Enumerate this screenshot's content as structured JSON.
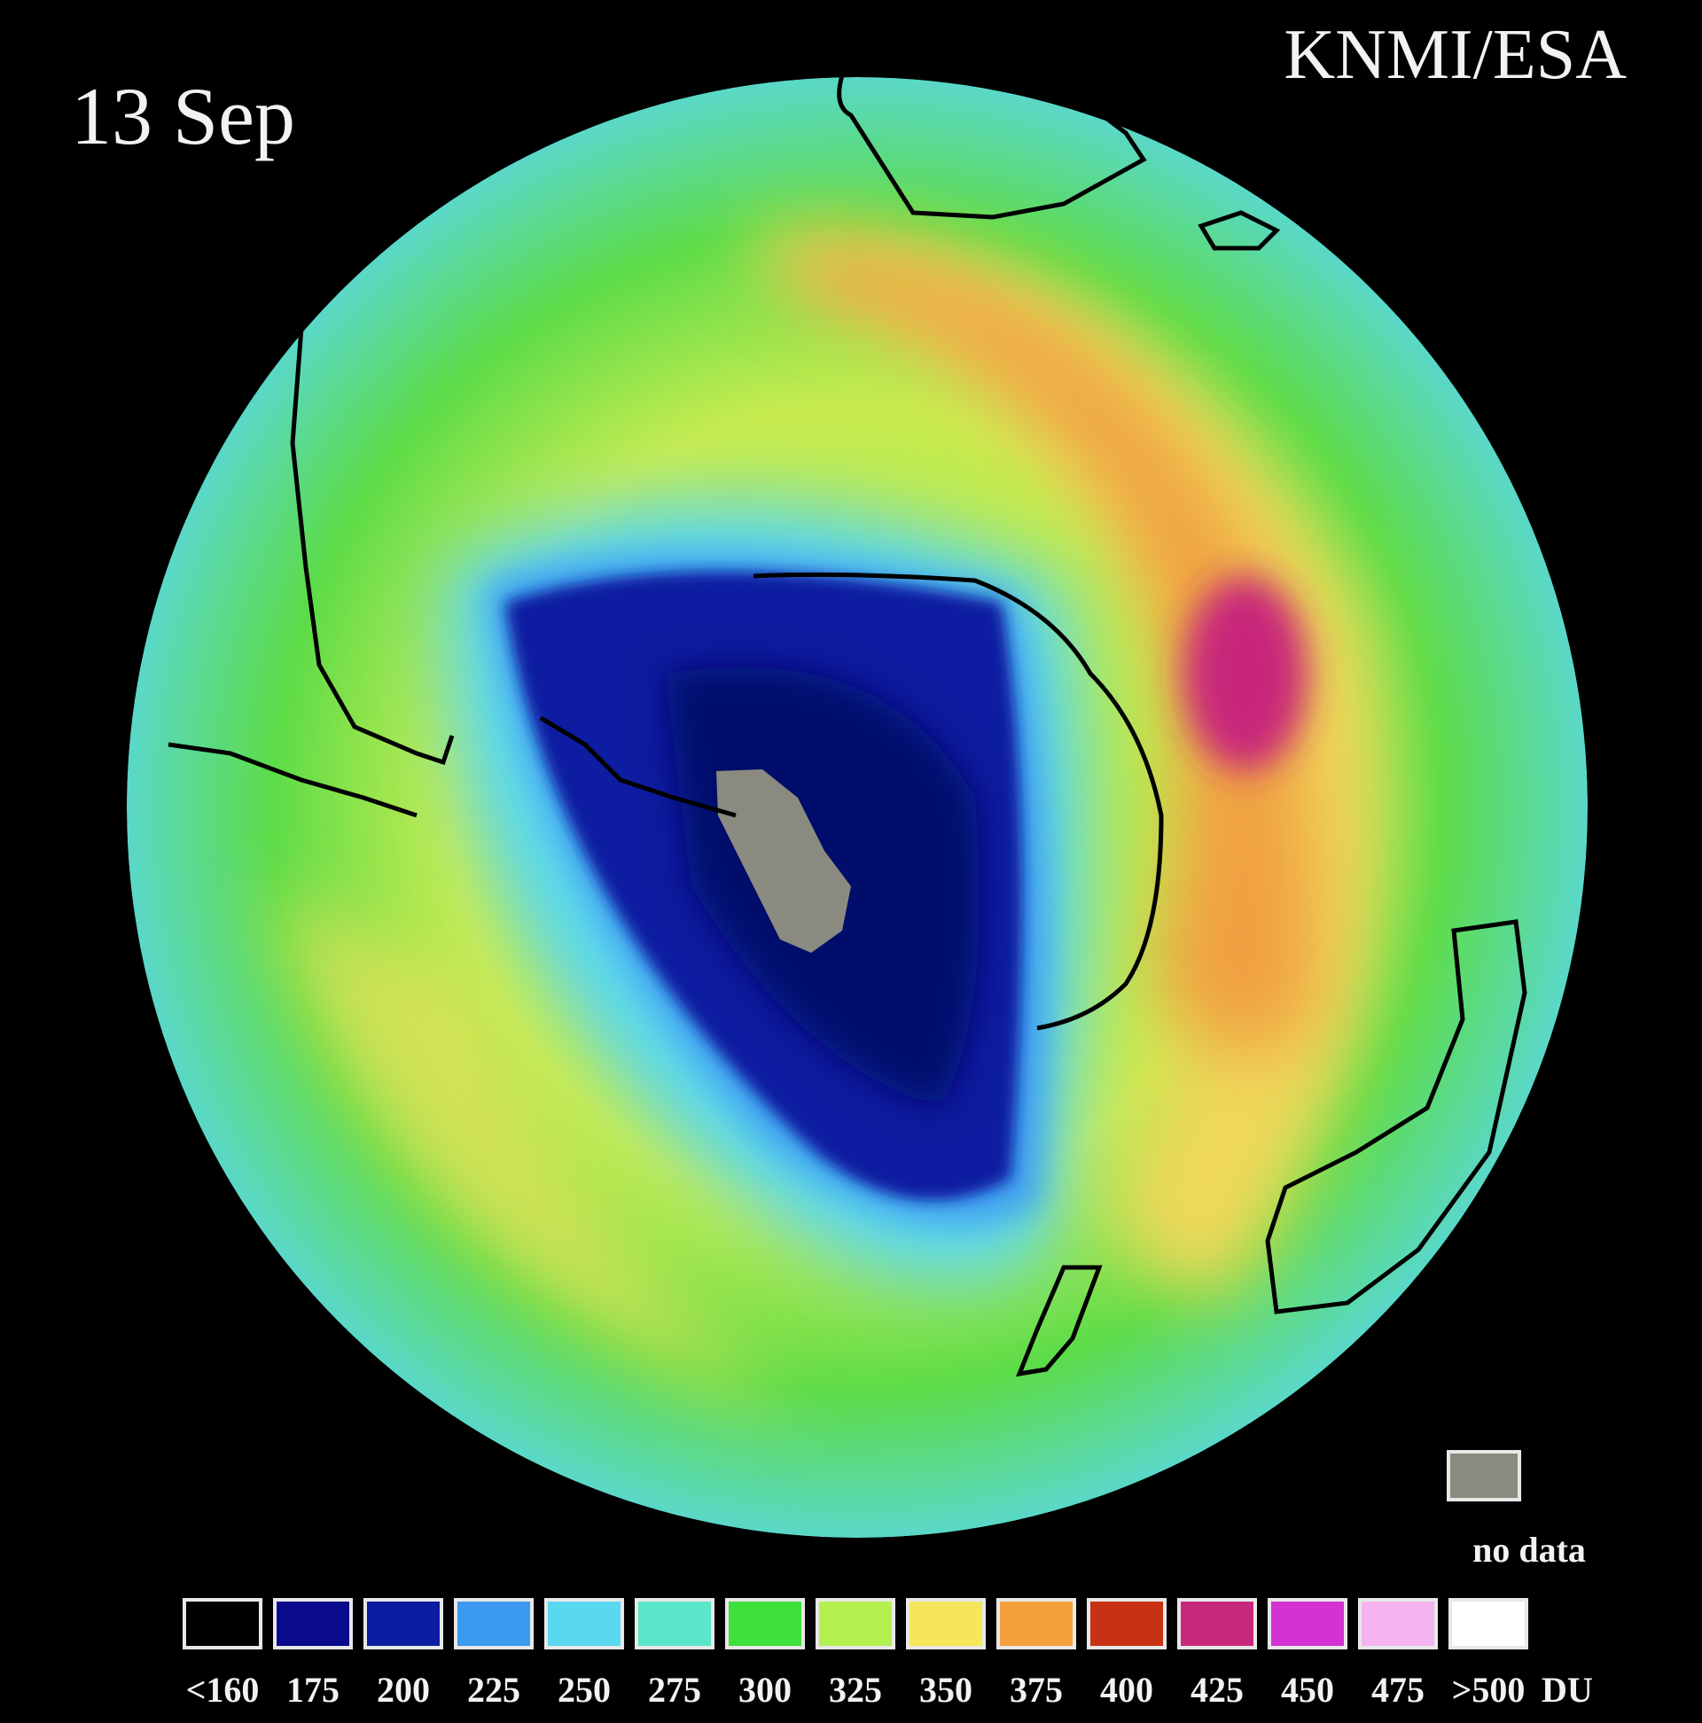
{
  "header": {
    "source": "KNMI/ESA",
    "date": "13 Sep"
  },
  "no_data": {
    "label": "no data",
    "color": "#8a8a80"
  },
  "legend": {
    "items": [
      {
        "label": "<160",
        "color": "#000000"
      },
      {
        "label": "175",
        "color": "#0a0a8c"
      },
      {
        "label": "200",
        "color": "#0c1ca0"
      },
      {
        "label": "225",
        "color": "#3c9af0"
      },
      {
        "label": "250",
        "color": "#5ad8f0"
      },
      {
        "label": "275",
        "color": "#5ae6c8"
      },
      {
        "label": "300",
        "color": "#3ee03c"
      },
      {
        "label": "325",
        "color": "#b4f050"
      },
      {
        "label": "350",
        "color": "#f5e65a"
      },
      {
        "label": "375",
        "color": "#f5a03c"
      },
      {
        "label": "400",
        "color": "#c83214"
      },
      {
        "label": "425",
        "color": "#c8287a"
      },
      {
        "label": "450",
        "color": "#d232d2"
      },
      {
        "label": "475",
        "color": "#f5b4f0"
      },
      {
        "label": ">500",
        "color": "#ffffff"
      }
    ],
    "unit": "DU"
  }
}
